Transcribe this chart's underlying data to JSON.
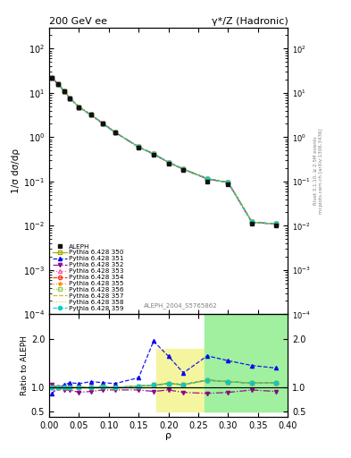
{
  "title_left": "200 GeV ee",
  "title_right": "γ*/Z (Hadronic)",
  "ylabel_main": "1/σ dσ/dρ",
  "ylabel_ratio": "Ratio to ALEPH",
  "xlabel": "ρ",
  "right_label_top": "Rivet 3.1.10, ≥ 2.5M events",
  "right_label_bot": "mcplots.cern.ch [arXiv:1306.3436]",
  "analysis_label": "ALEPH_2004_S5765862",
  "rho_data": [
    0.005,
    0.015,
    0.025,
    0.035,
    0.05,
    0.07,
    0.09,
    0.11,
    0.15,
    0.175,
    0.2,
    0.225,
    0.265,
    0.3,
    0.34,
    0.38
  ],
  "sigma_data": [
    22.0,
    16.0,
    11.0,
    7.5,
    4.8,
    3.2,
    2.0,
    1.3,
    0.58,
    0.4,
    0.25,
    0.18,
    0.1,
    0.085,
    0.011,
    0.01
  ],
  "rho_mc": [
    0.005,
    0.015,
    0.025,
    0.035,
    0.05,
    0.07,
    0.09,
    0.11,
    0.15,
    0.175,
    0.2,
    0.225,
    0.265,
    0.3,
    0.34,
    0.38
  ],
  "mc350": [
    21.5,
    16.0,
    11.0,
    7.5,
    4.8,
    3.2,
    2.05,
    1.3,
    0.6,
    0.42,
    0.27,
    0.19,
    0.115,
    0.095,
    0.012,
    0.011
  ],
  "mc351": [
    21.5,
    16.0,
    11.0,
    7.5,
    4.8,
    3.2,
    2.05,
    1.3,
    0.6,
    0.42,
    0.27,
    0.19,
    0.115,
    0.095,
    0.012,
    0.011
  ],
  "mc352": [
    21.5,
    16.0,
    11.0,
    7.5,
    4.8,
    3.2,
    2.05,
    1.3,
    0.6,
    0.42,
    0.27,
    0.19,
    0.115,
    0.095,
    0.012,
    0.011
  ],
  "mc353": [
    21.5,
    16.0,
    11.0,
    7.5,
    4.8,
    3.2,
    2.05,
    1.3,
    0.6,
    0.42,
    0.27,
    0.19,
    0.115,
    0.095,
    0.012,
    0.011
  ],
  "mc354": [
    21.5,
    16.0,
    11.0,
    7.5,
    4.8,
    3.2,
    2.05,
    1.3,
    0.6,
    0.42,
    0.27,
    0.19,
    0.115,
    0.095,
    0.012,
    0.011
  ],
  "mc355": [
    21.5,
    16.0,
    11.0,
    7.5,
    4.8,
    3.2,
    2.05,
    1.3,
    0.6,
    0.42,
    0.27,
    0.19,
    0.115,
    0.095,
    0.012,
    0.011
  ],
  "mc356": [
    21.5,
    16.0,
    11.0,
    7.5,
    4.8,
    3.2,
    2.05,
    1.3,
    0.6,
    0.42,
    0.27,
    0.19,
    0.115,
    0.095,
    0.012,
    0.011
  ],
  "mc357": [
    21.5,
    16.0,
    11.0,
    7.5,
    4.8,
    3.2,
    2.05,
    1.3,
    0.6,
    0.42,
    0.27,
    0.19,
    0.115,
    0.095,
    0.012,
    0.011
  ],
  "mc358": [
    21.5,
    16.0,
    11.0,
    7.5,
    4.8,
    3.2,
    2.05,
    1.3,
    0.6,
    0.42,
    0.27,
    0.19,
    0.115,
    0.095,
    0.012,
    0.011
  ],
  "mc359": [
    21.5,
    16.0,
    11.0,
    7.5,
    4.8,
    3.2,
    2.05,
    1.3,
    0.6,
    0.42,
    0.27,
    0.19,
    0.115,
    0.095,
    0.012,
    0.011
  ],
  "ratio350": [
    1.0,
    1.0,
    1.0,
    1.0,
    1.0,
    1.0,
    1.02,
    1.0,
    1.03,
    1.05,
    1.08,
    1.06,
    1.15,
    1.12,
    1.09,
    1.1
  ],
  "ratio351": [
    0.88,
    1.0,
    1.05,
    1.1,
    1.08,
    1.12,
    1.1,
    1.08,
    1.2,
    1.95,
    1.64,
    1.3,
    1.65,
    1.55,
    1.45,
    1.4
  ],
  "ratio352": [
    1.05,
    1.0,
    0.95,
    0.95,
    0.9,
    0.92,
    0.95,
    0.95,
    0.95,
    0.92,
    0.95,
    0.9,
    0.88,
    0.9,
    0.95,
    0.92
  ],
  "ratio353": [
    1.0,
    1.0,
    1.0,
    1.0,
    1.0,
    1.0,
    1.02,
    1.0,
    1.03,
    1.05,
    1.08,
    1.06,
    1.15,
    1.12,
    1.09,
    1.1
  ],
  "ratio354": [
    1.0,
    1.0,
    1.0,
    1.0,
    1.0,
    1.0,
    1.02,
    1.0,
    1.03,
    1.05,
    1.08,
    1.06,
    1.15,
    1.12,
    1.09,
    1.1
  ],
  "ratio355": [
    1.0,
    1.0,
    1.0,
    1.0,
    1.0,
    1.0,
    1.02,
    1.0,
    1.03,
    1.05,
    1.08,
    1.06,
    1.15,
    1.12,
    1.09,
    1.1
  ],
  "ratio356": [
    1.0,
    1.0,
    1.0,
    1.0,
    1.0,
    1.0,
    1.02,
    1.0,
    1.03,
    1.05,
    1.08,
    1.06,
    1.15,
    1.12,
    1.09,
    1.1
  ],
  "ratio357": [
    1.0,
    1.0,
    1.0,
    1.0,
    1.0,
    1.0,
    1.02,
    1.0,
    1.03,
    1.05,
    1.08,
    1.06,
    1.15,
    1.12,
    1.09,
    1.1
  ],
  "ratio358": [
    1.0,
    1.0,
    1.0,
    1.0,
    1.0,
    1.0,
    1.02,
    1.0,
    1.03,
    1.05,
    1.08,
    1.06,
    1.15,
    1.12,
    1.09,
    1.1
  ],
  "ratio359": [
    1.0,
    1.0,
    1.0,
    1.0,
    1.0,
    1.0,
    1.02,
    1.0,
    1.03,
    1.05,
    1.08,
    1.06,
    1.15,
    1.12,
    1.09,
    1.1
  ],
  "band_edges": [
    0.0,
    0.14,
    0.18,
    0.22,
    0.26,
    0.3,
    0.4
  ],
  "band_yellow_lo": [
    1.0,
    1.0,
    0.5,
    0.5,
    0.5,
    0.5,
    0.5
  ],
  "band_yellow_hi": [
    1.0,
    1.0,
    1.8,
    1.8,
    1.8,
    2.5,
    2.5
  ],
  "band_green_lo": [
    1.0,
    1.0,
    1.0,
    1.0,
    0.5,
    0.5,
    0.5
  ],
  "band_green_hi": [
    1.0,
    1.0,
    1.0,
    1.0,
    2.5,
    2.5,
    2.5
  ],
  "colors": {
    "data": "#111111",
    "mc350": "#aaaa00",
    "mc351": "#0000ee",
    "mc352": "#880088",
    "mc353": "#ff44aa",
    "mc354": "#ff2200",
    "mc355": "#ff8800",
    "mc356": "#88cc44",
    "mc357": "#ddaa00",
    "mc358": "#cccc44",
    "mc359": "#00cccc"
  },
  "xlim": [
    0.0,
    0.4
  ],
  "ylim_main": [
    0.0001,
    300
  ],
  "ylim_ratio": [
    0.4,
    2.5
  ],
  "ratio_yticks": [
    0.5,
    1.0,
    2.0
  ]
}
